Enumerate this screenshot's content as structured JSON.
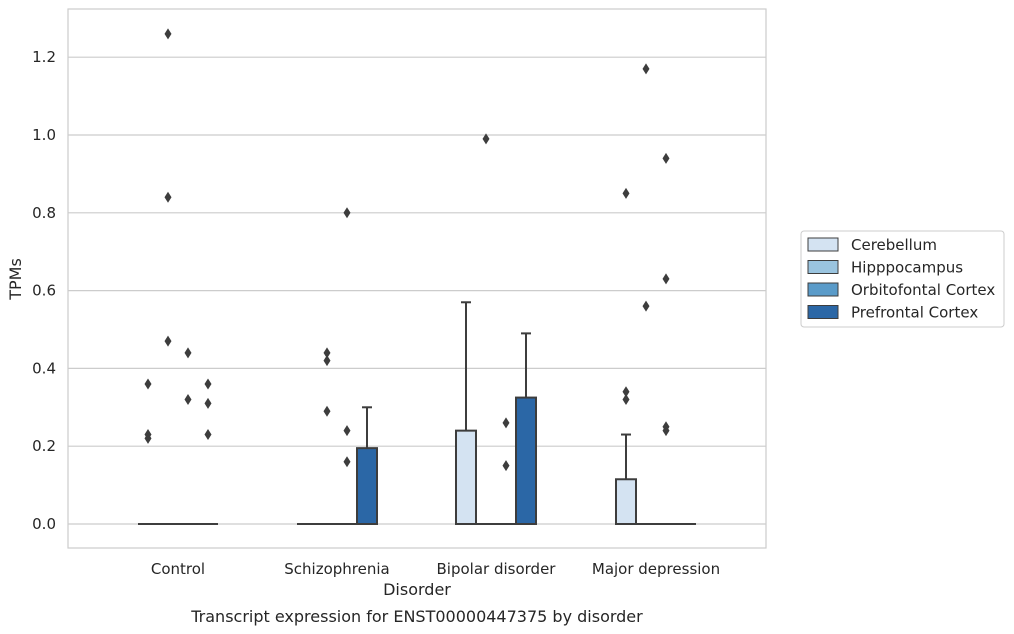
{
  "chart_data": {
    "type": "box",
    "title": "",
    "caption": "Transcript expression for ENST00000447375 by disorder",
    "xlabel": "Disorder",
    "ylabel": "TPMs",
    "ylim": [
      -0.06,
      1.32
    ],
    "yticks": [
      "0.0",
      "0.2",
      "0.4",
      "0.6",
      "0.8",
      "1.0",
      "1.2"
    ],
    "ytick_values": [
      0.0,
      0.2,
      0.4,
      0.6,
      0.8,
      1.0,
      1.2
    ],
    "grid": "horizontal",
    "legend_position": "right",
    "categories": [
      "Control",
      "Schizophrenia",
      "Bipolar disorder",
      "Major depression"
    ],
    "series": [
      {
        "name": "Cerebellum",
        "color": "#d4e3f2",
        "boxes": [
          {
            "q1": 0,
            "median": 0,
            "q3": 0,
            "whisker_low": 0,
            "whisker_high": 0,
            "outliers": [
              0.22,
              0.23,
              0.36
            ]
          },
          {
            "q1": 0,
            "median": 0,
            "q3": 0,
            "whisker_low": 0,
            "whisker_high": 0,
            "outliers": []
          },
          {
            "q1": 0,
            "median": 0,
            "q3": 0.24,
            "whisker_low": 0,
            "whisker_high": 0.57,
            "outliers": []
          },
          {
            "q1": 0,
            "median": 0,
            "q3": 0.115,
            "whisker_low": 0,
            "whisker_high": 0.23,
            "outliers": [
              0.32,
              0.34,
              0.85
            ]
          }
        ]
      },
      {
        "name": "Hipppocampus",
        "color": "#9ac4df",
        "boxes": [
          {
            "q1": 0,
            "median": 0,
            "q3": 0,
            "whisker_low": 0,
            "whisker_high": 0,
            "outliers": [
              0.47,
              0.84,
              1.26
            ]
          },
          {
            "q1": 0,
            "median": 0,
            "q3": 0,
            "whisker_low": 0,
            "whisker_high": 0,
            "outliers": [
              0.29,
              0.42,
              0.44
            ]
          },
          {
            "q1": 0,
            "median": 0,
            "q3": 0,
            "whisker_low": 0,
            "whisker_high": 0,
            "outliers": [
              0.99
            ]
          },
          {
            "q1": 0,
            "median": 0,
            "q3": 0,
            "whisker_low": 0,
            "whisker_high": 0,
            "outliers": [
              0.56,
              1.17
            ]
          }
        ]
      },
      {
        "name": "Orbitofontal Cortex",
        "color": "#5a9bc9",
        "boxes": [
          {
            "q1": 0,
            "median": 0,
            "q3": 0,
            "whisker_low": 0,
            "whisker_high": 0,
            "outliers": [
              0.32,
              0.44
            ]
          },
          {
            "q1": 0,
            "median": 0,
            "q3": 0,
            "whisker_low": 0,
            "whisker_high": 0,
            "outliers": [
              0.16,
              0.24,
              0.8
            ]
          },
          {
            "q1": 0,
            "median": 0,
            "q3": 0,
            "whisker_low": 0,
            "whisker_high": 0,
            "outliers": [
              0.15,
              0.26
            ]
          },
          {
            "q1": 0,
            "median": 0,
            "q3": 0,
            "whisker_low": 0,
            "whisker_high": 0,
            "outliers": [
              0.24,
              0.25,
              0.63,
              0.94
            ]
          }
        ]
      },
      {
        "name": "Prefrontal Cortex",
        "color": "#2b67a6",
        "boxes": [
          {
            "q1": 0,
            "median": 0,
            "q3": 0,
            "whisker_low": 0,
            "whisker_high": 0,
            "outliers": [
              0.23,
              0.31,
              0.36
            ]
          },
          {
            "q1": 0,
            "median": 0,
            "q3": 0.195,
            "whisker_low": 0,
            "whisker_high": 0.3,
            "outliers": []
          },
          {
            "q1": 0,
            "median": 0,
            "q3": 0.325,
            "whisker_low": 0,
            "whisker_high": 0.49,
            "outliers": []
          },
          {
            "q1": 0,
            "median": 0,
            "q3": 0,
            "whisker_low": 0,
            "whisker_high": 0,
            "outliers": []
          }
        ]
      }
    ]
  }
}
